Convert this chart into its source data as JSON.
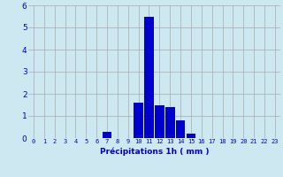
{
  "hours": [
    0,
    1,
    2,
    3,
    4,
    5,
    6,
    7,
    8,
    9,
    10,
    11,
    12,
    13,
    14,
    15,
    16,
    17,
    18,
    19,
    20,
    21,
    22,
    23
  ],
  "values": [
    0,
    0,
    0,
    0,
    0,
    0,
    0,
    0.3,
    0,
    0,
    1.6,
    5.5,
    1.5,
    1.4,
    0.8,
    0.2,
    0,
    0,
    0,
    0,
    0,
    0,
    0,
    0
  ],
  "bar_color": "#0000cc",
  "background_color": "#cde8f0",
  "grid_color": "#aaaaaa",
  "xlabel": "Précipitations 1h ( mm )",
  "xlabel_color": "#0000cc",
  "tick_color": "#0000cc",
  "ylim": [
    0,
    6
  ],
  "yticks": [
    0,
    1,
    2,
    3,
    4,
    5,
    6
  ],
  "xlim": [
    -0.5,
    23.5
  ],
  "tick_fontsize": 5.0,
  "ytick_fontsize": 6.5,
  "xlabel_fontsize": 6.5
}
